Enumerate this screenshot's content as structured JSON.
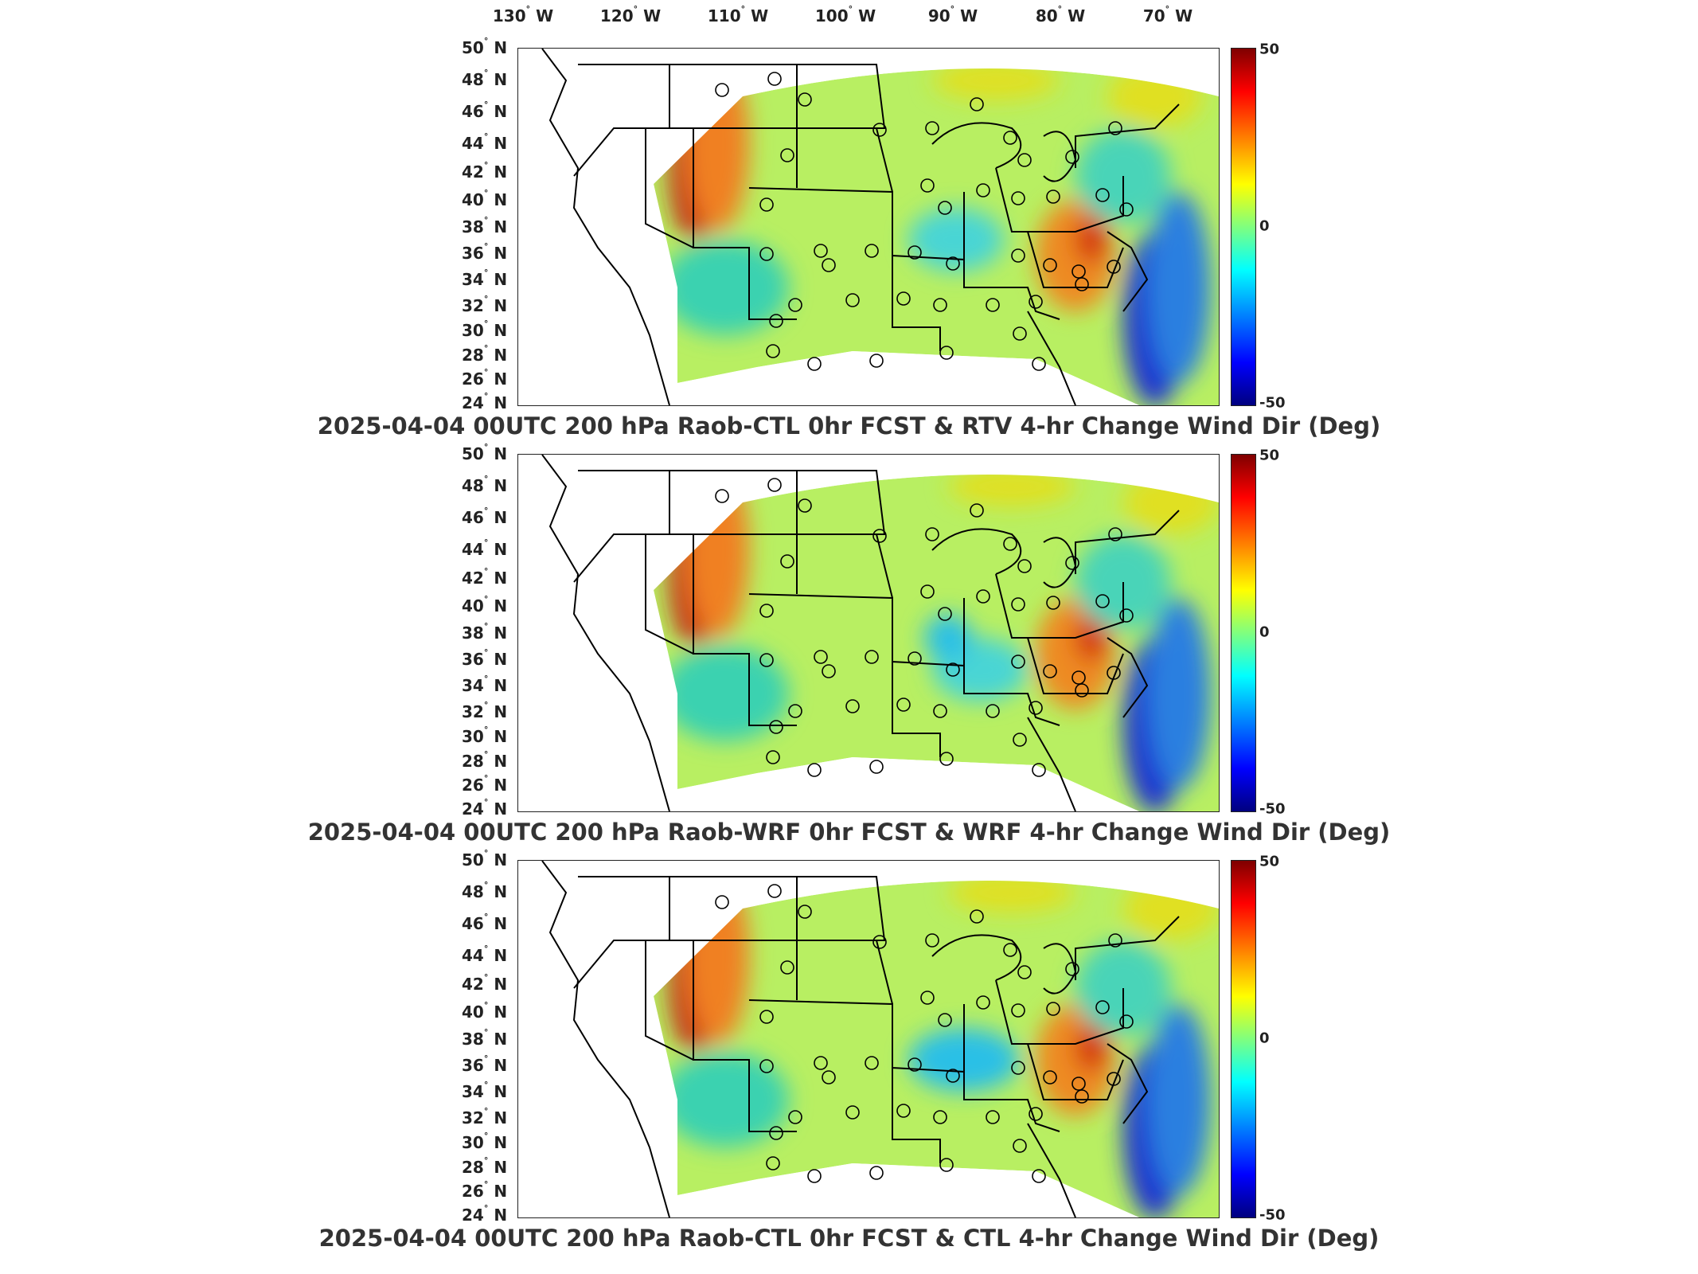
{
  "lon_labels": [
    {
      "deg": "130",
      "hem": "W"
    },
    {
      "deg": "120",
      "hem": "W"
    },
    {
      "deg": "110",
      "hem": "W"
    },
    {
      "deg": "100",
      "hem": "W"
    },
    {
      "deg": "90",
      "hem": "W"
    },
    {
      "deg": "80",
      "hem": "W"
    },
    {
      "deg": "70",
      "hem": "W"
    }
  ],
  "lat_labels": [
    {
      "deg": "50",
      "hem": "N"
    },
    {
      "deg": "48",
      "hem": "N"
    },
    {
      "deg": "46",
      "hem": "N"
    },
    {
      "deg": "44",
      "hem": "N"
    },
    {
      "deg": "42",
      "hem": "N"
    },
    {
      "deg": "40",
      "hem": "N"
    },
    {
      "deg": "38",
      "hem": "N"
    },
    {
      "deg": "36",
      "hem": "N"
    },
    {
      "deg": "34",
      "hem": "N"
    },
    {
      "deg": "32",
      "hem": "N"
    },
    {
      "deg": "30",
      "hem": "N"
    },
    {
      "deg": "28",
      "hem": "N"
    },
    {
      "deg": "26",
      "hem": "N"
    },
    {
      "deg": "24",
      "hem": "N"
    }
  ],
  "colorbar": {
    "max": "50",
    "mid": "0",
    "min": "-50",
    "colors": [
      "#7f0000",
      "#ff0000",
      "#ff7f00",
      "#ffff00",
      "#7fff7f",
      "#00ffff",
      "#007fff",
      "#0000ff",
      "#00007f"
    ]
  },
  "panels": [
    {
      "title": "2025-04-04 00UTC 200 hPa Raob-CTL 0hr FCST & RTV 4-hr Change Wind Dir (Deg)"
    },
    {
      "title": "2025-04-04 00UTC 200 hPa Raob-WRF 0hr FCST & WRF 4-hr Change Wind Dir (Deg)"
    },
    {
      "title": "2025-04-04 00UTC 200 hPa Raob-CTL 0hr FCST & CTL 4-hr Change Wind Dir (Deg)"
    }
  ]
}
